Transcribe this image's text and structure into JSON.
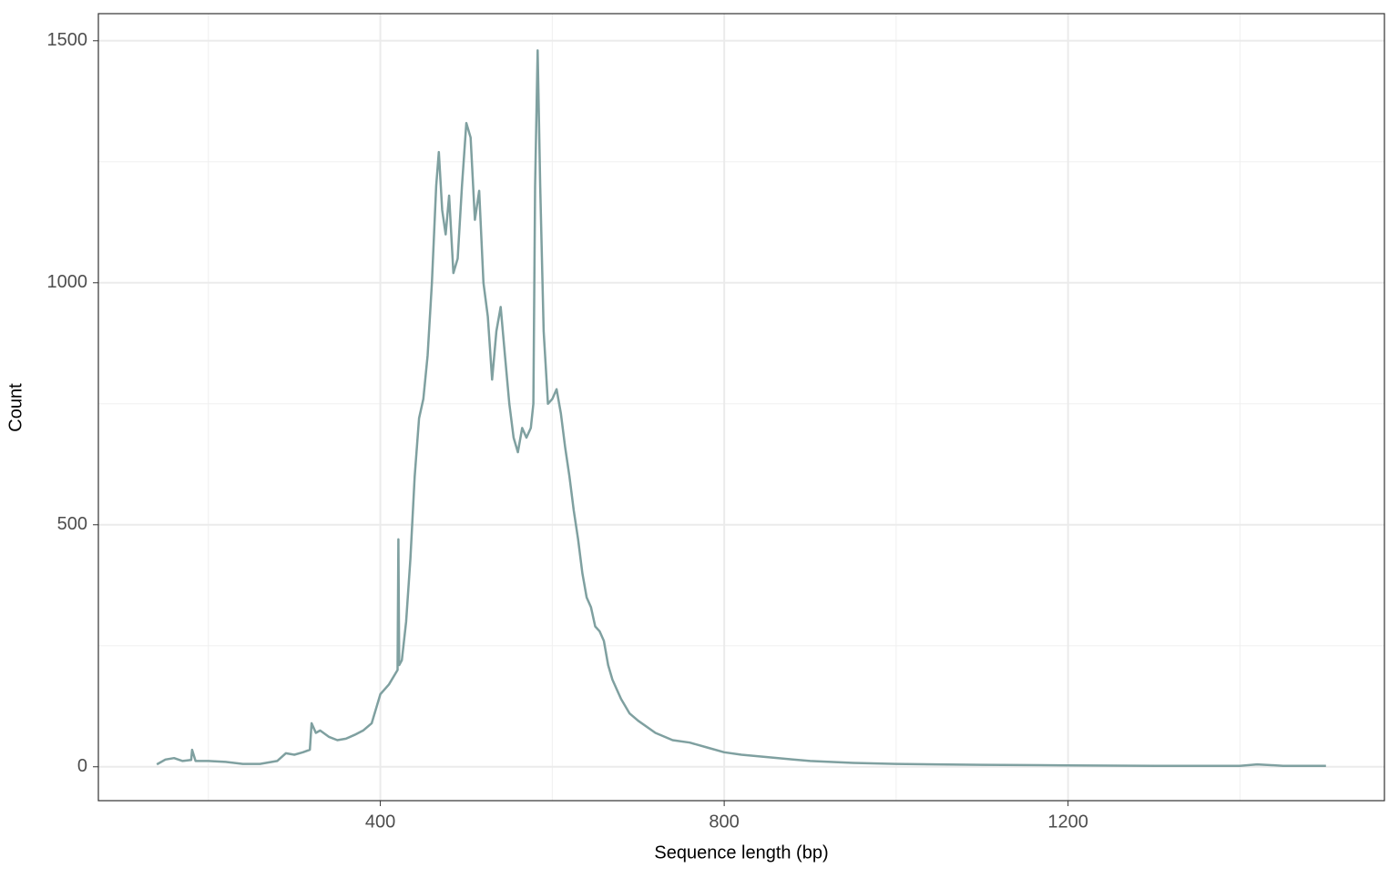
{
  "chart_data": {
    "type": "line",
    "x_label": "Sequence length (bp)",
    "y_label": "Count",
    "color": "#7fa0a0",
    "grid": true,
    "xlim": [
      72,
      1568
    ],
    "ylim": [
      -70,
      1556
    ],
    "xticks": [
      400,
      800,
      1200
    ],
    "yticks": [
      0,
      500,
      1000,
      1500
    ],
    "x_minor_grid": [
      200,
      600,
      1000,
      1400
    ],
    "y_minor_grid": [
      250,
      750,
      1250
    ],
    "x": [
      140,
      150,
      160,
      170,
      180,
      181,
      185,
      200,
      220,
      240,
      260,
      280,
      290,
      300,
      310,
      318,
      320,
      325,
      330,
      340,
      350,
      360,
      370,
      380,
      390,
      400,
      410,
      420,
      421,
      422,
      425,
      430,
      435,
      440,
      445,
      450,
      455,
      460,
      465,
      468,
      472,
      476,
      480,
      485,
      490,
      495,
      500,
      505,
      510,
      515,
      520,
      525,
      530,
      535,
      540,
      545,
      550,
      555,
      560,
      565,
      570,
      575,
      578,
      580,
      583,
      586,
      590,
      595,
      600,
      605,
      610,
      615,
      620,
      625,
      630,
      635,
      640,
      645,
      650,
      655,
      660,
      665,
      670,
      680,
      690,
      700,
      720,
      740,
      760,
      780,
      800,
      820,
      850,
      880,
      900,
      950,
      1000,
      1100,
      1200,
      1300,
      1400,
      1420,
      1450,
      1500
    ],
    "values": [
      5,
      15,
      18,
      12,
      14,
      35,
      12,
      12,
      10,
      6,
      6,
      12,
      28,
      25,
      30,
      35,
      90,
      70,
      75,
      62,
      55,
      58,
      66,
      75,
      90,
      150,
      170,
      200,
      470,
      210,
      220,
      300,
      430,
      600,
      720,
      760,
      850,
      1000,
      1200,
      1270,
      1150,
      1100,
      1180,
      1020,
      1050,
      1200,
      1330,
      1300,
      1130,
      1190,
      1000,
      930,
      800,
      900,
      950,
      850,
      750,
      680,
      650,
      700,
      680,
      700,
      750,
      1200,
      1480,
      1200,
      900,
      750,
      760,
      780,
      730,
      660,
      600,
      530,
      470,
      400,
      350,
      330,
      290,
      280,
      260,
      210,
      180,
      140,
      110,
      95,
      70,
      55,
      50,
      40,
      30,
      25,
      20,
      15,
      12,
      8,
      6,
      4,
      3,
      2,
      2,
      5,
      2,
      2
    ]
  }
}
